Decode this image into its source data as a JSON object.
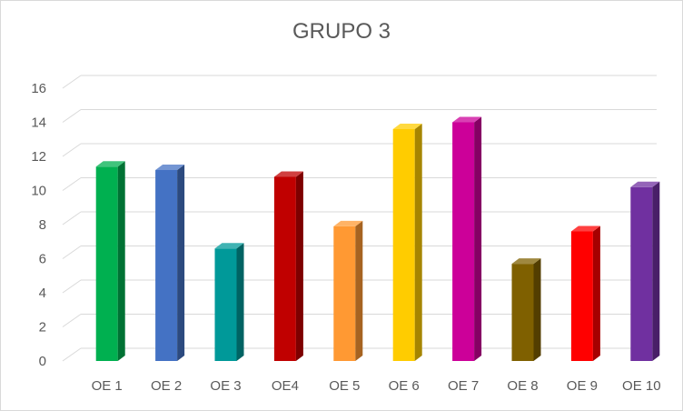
{
  "chart_data": {
    "type": "bar",
    "title": "GRUPO 3",
    "xlabel": "",
    "ylabel": "",
    "categories": [
      "OE 1",
      "OE 2",
      "OE 3",
      "OE4",
      "OE 5",
      "OE 6",
      "OE 7",
      "OE 8",
      "OE 9",
      "OE 10"
    ],
    "values": [
      11.4,
      11.2,
      6.6,
      10.8,
      7.9,
      13.6,
      14.0,
      5.7,
      7.6,
      10.2
    ],
    "colors": [
      "#00b050",
      "#4472c4",
      "#009999",
      "#c00000",
      "#ff9933",
      "#ffcc00",
      "#cc0099",
      "#7f6000",
      "#ff0000",
      "#7030a0"
    ],
    "ylim": [
      0,
      16
    ],
    "yticks": [
      "0",
      "2",
      "4",
      "6",
      "8",
      "10",
      "12",
      "14",
      "16"
    ],
    "grid": true,
    "style": "3d-column",
    "gridline_color": "#d9d9d9"
  }
}
